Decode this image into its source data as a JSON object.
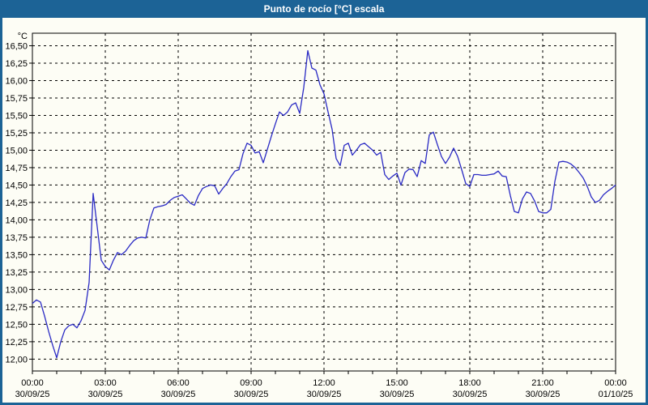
{
  "window": {
    "title": "Punto de rocío [°C] escala"
  },
  "colors": {
    "titlebar_bg": "#1C6396",
    "titlebar_text": "#FFFFFF",
    "border": "#1C6396",
    "window_bg": "#FDFDF5",
    "grid": "#000000",
    "text": "#000000",
    "line": "#2A2AC4"
  },
  "chart_data": {
    "type": "line",
    "title": "Punto de rocío [°C] escala",
    "y_unit_label": "°C",
    "ylabel": "°C",
    "xlabel": "",
    "grid": "dashed",
    "legend": "none",
    "ylim": [
      11.83,
      16.68
    ],
    "x_range_minutes": 1440,
    "sample_interval_minutes": 10,
    "yticks": [
      {
        "v": 16.5,
        "label": "16,50"
      },
      {
        "v": 16.25,
        "label": "16,25"
      },
      {
        "v": 16.0,
        "label": "16,00"
      },
      {
        "v": 15.75,
        "label": "15,75"
      },
      {
        "v": 15.5,
        "label": "15,50"
      },
      {
        "v": 15.25,
        "label": "15,25"
      },
      {
        "v": 15.0,
        "label": "15,00"
      },
      {
        "v": 14.75,
        "label": "14,75"
      },
      {
        "v": 14.5,
        "label": "14,50"
      },
      {
        "v": 14.25,
        "label": "14,25"
      },
      {
        "v": 14.0,
        "label": "14,00"
      },
      {
        "v": 13.75,
        "label": "13,75"
      },
      {
        "v": 13.5,
        "label": "13,50"
      },
      {
        "v": 13.25,
        "label": "13,25"
      },
      {
        "v": 13.0,
        "label": "13,00"
      },
      {
        "v": 12.75,
        "label": "12,75"
      },
      {
        "v": 12.5,
        "label": "12,50"
      },
      {
        "v": 12.25,
        "label": "12,25"
      },
      {
        "v": 12.0,
        "label": "12,00"
      }
    ],
    "xticks": [
      {
        "minutes": 0,
        "time": "00:00",
        "date": "30/09/25"
      },
      {
        "minutes": 180,
        "time": "03:00",
        "date": "30/09/25"
      },
      {
        "minutes": 360,
        "time": "06:00",
        "date": "30/09/25"
      },
      {
        "minutes": 540,
        "time": "09:00",
        "date": "30/09/25"
      },
      {
        "minutes": 720,
        "time": "12:00",
        "date": "30/09/25"
      },
      {
        "minutes": 900,
        "time": "15:00",
        "date": "30/09/25"
      },
      {
        "minutes": 1080,
        "time": "18:00",
        "date": "30/09/25"
      },
      {
        "minutes": 1260,
        "time": "21:00",
        "date": "30/09/25"
      },
      {
        "minutes": 1440,
        "time": "00:00",
        "date": "01/10/25"
      }
    ],
    "series": [
      {
        "name": "Punto de rocío [°C]",
        "color": "#2A2AC4",
        "values": [
          12.8,
          12.85,
          12.82,
          12.62,
          12.4,
          12.2,
          12.02,
          12.25,
          12.42,
          12.48,
          12.5,
          12.45,
          12.55,
          12.7,
          13.1,
          14.38,
          13.9,
          13.42,
          13.33,
          13.28,
          13.42,
          13.53,
          13.5,
          13.55,
          13.63,
          13.7,
          13.74,
          13.75,
          13.74,
          14.0,
          14.17,
          14.19,
          14.2,
          14.22,
          14.28,
          14.32,
          14.34,
          14.36,
          14.3,
          14.24,
          14.21,
          14.35,
          14.45,
          14.48,
          14.5,
          14.49,
          14.37,
          14.45,
          14.52,
          14.62,
          14.7,
          14.72,
          14.95,
          15.1,
          15.07,
          14.96,
          14.98,
          14.82,
          15.01,
          15.2,
          15.38,
          15.55,
          15.5,
          15.55,
          15.65,
          15.68,
          15.53,
          15.9,
          16.43,
          16.18,
          16.15,
          15.94,
          15.81,
          15.55,
          15.3,
          14.88,
          14.78,
          15.07,
          15.1,
          14.93,
          15.0,
          15.08,
          15.1,
          15.05,
          15.0,
          14.93,
          14.97,
          14.65,
          14.58,
          14.63,
          14.67,
          14.5,
          14.68,
          14.73,
          14.72,
          14.62,
          14.85,
          14.81,
          15.22,
          15.26,
          15.08,
          14.91,
          14.81,
          14.9,
          15.03,
          14.91,
          14.72,
          14.52,
          14.48,
          14.65,
          14.65,
          14.64,
          14.64,
          14.65,
          14.66,
          14.7,
          14.63,
          14.62,
          14.35,
          14.12,
          14.1,
          14.3,
          14.4,
          14.38,
          14.27,
          14.12,
          14.1,
          14.1,
          14.15,
          14.55,
          14.83,
          14.84,
          14.83,
          14.8,
          14.75,
          14.68,
          14.6,
          14.48,
          14.33,
          14.25,
          14.28,
          14.36,
          14.41,
          14.45,
          14.5
        ]
      }
    ]
  }
}
